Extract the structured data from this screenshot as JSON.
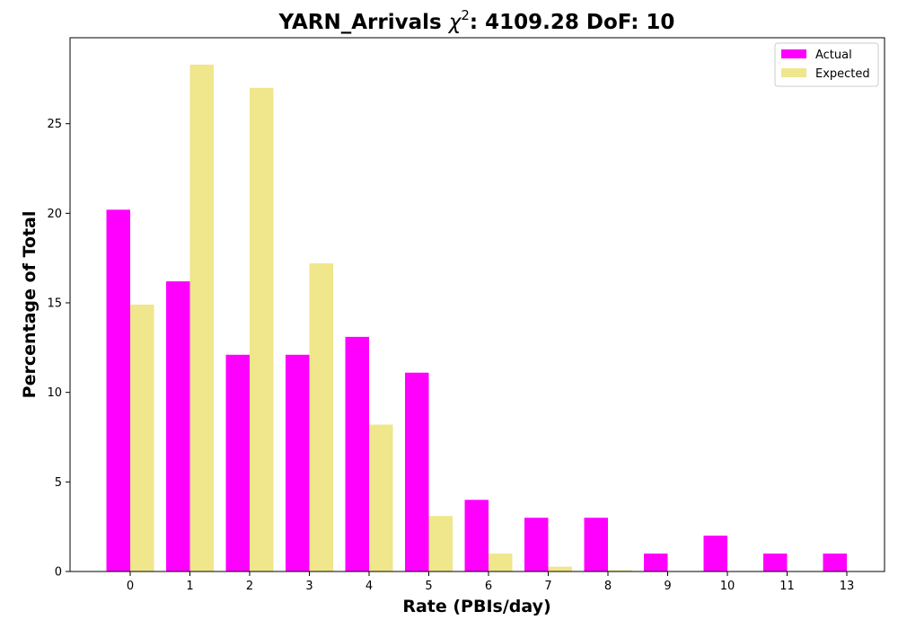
{
  "chart_data": {
    "type": "bar",
    "title_main": "YARN_Arrivals ",
    "title_chi": "χ",
    "title_sup": "2",
    "title_rest": ": 4109.28 DoF: 10",
    "xlabel": "Rate (PBIs/day)",
    "ylabel": "Percentage of Total",
    "categories": [
      "0",
      "1",
      "2",
      "3",
      "4",
      "5",
      "6",
      "7",
      "8",
      "9",
      "10",
      "11",
      "13"
    ],
    "ylim": [
      0,
      29.8
    ],
    "yticks": [
      0,
      5,
      10,
      15,
      20,
      25
    ],
    "legend_position": "upper-right",
    "series": [
      {
        "name": "Actual",
        "color": "#ff00ff",
        "values": [
          20.2,
          16.2,
          12.1,
          12.1,
          13.1,
          11.1,
          4.0,
          3.0,
          3.0,
          1.0,
          2.0,
          1.0,
          1.0
        ]
      },
      {
        "name": "Expected",
        "color": "#f0e68c",
        "values": [
          14.9,
          28.3,
          27.0,
          17.2,
          8.2,
          3.1,
          1.0,
          0.27,
          0.07,
          0.02,
          0.0,
          0.0,
          0.0
        ]
      }
    ]
  }
}
